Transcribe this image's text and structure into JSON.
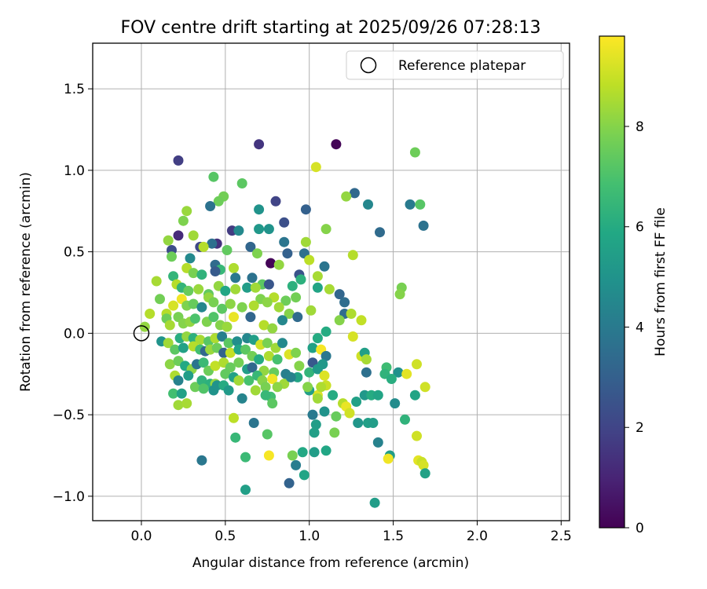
{
  "chart_data": {
    "type": "scatter",
    "title": "FOV centre drift starting at 2025/09/26 07:28:13",
    "xlabel": "Angular distance from reference (arcmin)",
    "ylabel": "Rotation from reference (arcmin)",
    "xlim": [
      -0.29,
      2.55
    ],
    "ylim": [
      -1.15,
      1.78
    ],
    "xticks": [
      0.0,
      0.5,
      1.0,
      1.5,
      2.0,
      2.5
    ],
    "xtick_labels": [
      "0.0",
      "0.5",
      "1.0",
      "1.5",
      "2.0",
      "2.5"
    ],
    "yticks": [
      -1.0,
      -0.5,
      0.0,
      0.5,
      1.0,
      1.5
    ],
    "ytick_labels": [
      "−1.0",
      "−0.5",
      "0.0",
      "0.5",
      "1.0",
      "1.5"
    ],
    "grid": true,
    "legend": {
      "position": "upper-right",
      "entries": [
        "Reference platepar"
      ]
    },
    "reference_point": {
      "x": 0.0,
      "y": 0.0,
      "label": "Reference platepar"
    },
    "colorbar": {
      "label": "Hours from first FF file",
      "colormap": "viridis",
      "range": [
        0,
        9.8
      ],
      "ticks": [
        0,
        2,
        4,
        6,
        8
      ],
      "tick_labels": [
        "0",
        "2",
        "4",
        "6",
        "8"
      ]
    },
    "points": [
      [
        1.16,
        1.16,
        0.1
      ],
      [
        0.7,
        1.16,
        1.5
      ],
      [
        0.22,
        1.06,
        1.8
      ],
      [
        1.63,
        1.11,
        7.6
      ],
      [
        1.04,
        1.02,
        9.2
      ],
      [
        0.43,
        0.96,
        7.2
      ],
      [
        0.6,
        0.92,
        7.3
      ],
      [
        1.27,
        0.86,
        3.3
      ],
      [
        1.22,
        0.84,
        8.2
      ],
      [
        0.49,
        0.84,
        7.7
      ],
      [
        0.46,
        0.81,
        7.6
      ],
      [
        0.8,
        0.81,
        2.0
      ],
      [
        0.41,
        0.78,
        3.7
      ],
      [
        0.98,
        0.76,
        3.0
      ],
      [
        0.7,
        0.76,
        5.0
      ],
      [
        1.35,
        0.79,
        4.5
      ],
      [
        1.6,
        0.79,
        4.0
      ],
      [
        1.66,
        0.79,
        7.2
      ],
      [
        0.27,
        0.75,
        8.3
      ],
      [
        0.25,
        0.69,
        7.9
      ],
      [
        0.85,
        0.68,
        2.4
      ],
      [
        0.7,
        0.64,
        5.2
      ],
      [
        0.76,
        0.64,
        5.0
      ],
      [
        1.1,
        0.64,
        8.0
      ],
      [
        1.68,
        0.66,
        3.7
      ],
      [
        1.42,
        0.62,
        3.4
      ],
      [
        0.22,
        0.6,
        1.2
      ],
      [
        0.31,
        0.6,
        8.4
      ],
      [
        0.54,
        0.63,
        1.7
      ],
      [
        0.58,
        0.63,
        4.6
      ],
      [
        0.45,
        0.55,
        1.4
      ],
      [
        0.42,
        0.55,
        3.6
      ],
      [
        0.16,
        0.57,
        8.2
      ],
      [
        0.85,
        0.56,
        3.8
      ],
      [
        0.98,
        0.56,
        8.4
      ],
      [
        0.18,
        0.51,
        2.3
      ],
      [
        0.35,
        0.53,
        2.1
      ],
      [
        0.37,
        0.53,
        8.7
      ],
      [
        0.51,
        0.51,
        7.4
      ],
      [
        0.65,
        0.53,
        3.2
      ],
      [
        0.69,
        0.49,
        7.9
      ],
      [
        0.87,
        0.49,
        3.0
      ],
      [
        0.97,
        0.49,
        3.6
      ],
      [
        1.26,
        0.48,
        8.7
      ],
      [
        0.18,
        0.47,
        7.6
      ],
      [
        0.29,
        0.46,
        4.6
      ],
      [
        0.44,
        0.42,
        3.4
      ],
      [
        0.47,
        0.39,
        6.5
      ],
      [
        0.55,
        0.4,
        8.6
      ],
      [
        0.27,
        0.4,
        8.7
      ],
      [
        0.77,
        0.43,
        0.1
      ],
      [
        0.82,
        0.42,
        8.2
      ],
      [
        1.0,
        0.45,
        8.8
      ],
      [
        1.09,
        0.41,
        3.8
      ],
      [
        0.19,
        0.35,
        6.4
      ],
      [
        0.31,
        0.37,
        7.8
      ],
      [
        0.36,
        0.36,
        6.3
      ],
      [
        0.44,
        0.38,
        2.8
      ],
      [
        0.56,
        0.34,
        3.9
      ],
      [
        0.66,
        0.34,
        3.7
      ],
      [
        0.72,
        0.3,
        7.3
      ],
      [
        0.76,
        0.3,
        2.6
      ],
      [
        0.9,
        0.29,
        6.2
      ],
      [
        0.94,
        0.36,
        2.5
      ],
      [
        0.95,
        0.33,
        6.2
      ],
      [
        1.05,
        0.35,
        8.5
      ],
      [
        1.05,
        0.28,
        5.7
      ],
      [
        1.12,
        0.27,
        8.5
      ],
      [
        1.55,
        0.28,
        7.8
      ],
      [
        1.54,
        0.24,
        8.0
      ],
      [
        0.09,
        0.32,
        8.5
      ],
      [
        0.21,
        0.3,
        8.7
      ],
      [
        0.24,
        0.28,
        6.4
      ],
      [
        0.28,
        0.26,
        7.5
      ],
      [
        0.34,
        0.27,
        8.3
      ],
      [
        0.4,
        0.24,
        7.4
      ],
      [
        0.46,
        0.29,
        8.2
      ],
      [
        0.5,
        0.26,
        5.8
      ],
      [
        0.56,
        0.27,
        8.4
      ],
      [
        0.63,
        0.28,
        5.4
      ],
      [
        0.68,
        0.28,
        8.4
      ],
      [
        0.71,
        0.21,
        7.9
      ],
      [
        0.79,
        0.22,
        8.7
      ],
      [
        0.86,
        0.2,
        7.6
      ],
      [
        0.92,
        0.22,
        7.7
      ],
      [
        1.18,
        0.24,
        3.2
      ],
      [
        1.21,
        0.19,
        3.5
      ],
      [
        0.11,
        0.21,
        7.7
      ],
      [
        0.15,
        0.12,
        8.7
      ],
      [
        0.19,
        0.17,
        9.2
      ],
      [
        0.24,
        0.21,
        9.6
      ],
      [
        0.27,
        0.17,
        7.9
      ],
      [
        0.31,
        0.18,
        7.5
      ],
      [
        0.36,
        0.16,
        4.5
      ],
      [
        0.4,
        0.22,
        8.2
      ],
      [
        0.43,
        0.19,
        7.8
      ],
      [
        0.48,
        0.15,
        7.3
      ],
      [
        0.53,
        0.18,
        8.1
      ],
      [
        0.6,
        0.16,
        7.9
      ],
      [
        0.67,
        0.17,
        8.6
      ],
      [
        0.75,
        0.19,
        8.1
      ],
      [
        0.82,
        0.16,
        8.4
      ],
      [
        0.88,
        0.12,
        8.0
      ],
      [
        0.93,
        0.1,
        3.4
      ],
      [
        1.01,
        0.14,
        8.4
      ],
      [
        1.21,
        0.12,
        3.5
      ],
      [
        1.25,
        0.12,
        8.6
      ],
      [
        0.05,
        0.12,
        8.7
      ],
      [
        0.02,
        0.04,
        8.2
      ],
      [
        0.15,
        0.09,
        7.6
      ],
      [
        0.17,
        0.05,
        8.5
      ],
      [
        0.22,
        0.1,
        7.8
      ],
      [
        0.25,
        0.06,
        8.0
      ],
      [
        0.29,
        0.07,
        8.2
      ],
      [
        0.32,
        0.09,
        7.0
      ],
      [
        0.39,
        0.07,
        7.9
      ],
      [
        0.43,
        0.1,
        7.1
      ],
      [
        0.47,
        0.05,
        8.0
      ],
      [
        0.51,
        0.04,
        8.3
      ],
      [
        0.55,
        0.1,
        9.5
      ],
      [
        0.65,
        0.1,
        3.2
      ],
      [
        0.73,
        0.05,
        8.7
      ],
      [
        0.78,
        0.03,
        8.2
      ],
      [
        0.84,
        0.08,
        4.5
      ],
      [
        1.18,
        0.08,
        8.0
      ],
      [
        1.31,
        0.08,
        8.9
      ],
      [
        1.1,
        0.01,
        6.0
      ],
      [
        0.12,
        -0.05,
        5.0
      ],
      [
        0.16,
        -0.06,
        8.4
      ],
      [
        0.23,
        -0.03,
        6.1
      ],
      [
        0.27,
        -0.02,
        8.2
      ],
      [
        0.31,
        -0.03,
        6.2
      ],
      [
        0.35,
        -0.04,
        8.5
      ],
      [
        0.4,
        -0.05,
        7.2
      ],
      [
        0.44,
        -0.03,
        8.6
      ],
      [
        0.48,
        -0.02,
        4.2
      ],
      [
        0.52,
        -0.06,
        7.3
      ],
      [
        0.57,
        -0.05,
        4.8
      ],
      [
        0.63,
        -0.03,
        4.5
      ],
      [
        0.67,
        -0.04,
        5.5
      ],
      [
        0.71,
        -0.07,
        9.1
      ],
      [
        0.75,
        -0.06,
        7.8
      ],
      [
        0.8,
        -0.09,
        8.4
      ],
      [
        0.84,
        -0.06,
        4.6
      ],
      [
        1.05,
        -0.03,
        6.0
      ],
      [
        1.26,
        -0.02,
        9.2
      ],
      [
        0.17,
        -0.19,
        8.1
      ],
      [
        0.2,
        -0.1,
        7.3
      ],
      [
        0.25,
        -0.09,
        5.6
      ],
      [
        0.31,
        -0.08,
        8.7
      ],
      [
        0.35,
        -0.1,
        6.8
      ],
      [
        0.38,
        -0.11,
        3.3
      ],
      [
        0.41,
        -0.1,
        8.3
      ],
      [
        0.45,
        -0.09,
        7.6
      ],
      [
        0.49,
        -0.12,
        3.1
      ],
      [
        0.53,
        -0.12,
        8.9
      ],
      [
        0.58,
        -0.1,
        5.8
      ],
      [
        0.62,
        -0.1,
        7.3
      ],
      [
        0.66,
        -0.14,
        7.7
      ],
      [
        0.7,
        -0.16,
        6.0
      ],
      [
        0.76,
        -0.14,
        8.6
      ],
      [
        0.81,
        -0.16,
        6.9
      ],
      [
        0.88,
        -0.13,
        9.3
      ],
      [
        0.92,
        -0.12,
        7.9
      ],
      [
        1.02,
        -0.09,
        5.6
      ],
      [
        1.07,
        -0.1,
        9.7
      ],
      [
        1.1,
        -0.14,
        3.9
      ],
      [
        1.31,
        -0.14,
        9.1
      ],
      [
        1.33,
        -0.12,
        5.5
      ],
      [
        1.34,
        -0.16,
        8.5
      ],
      [
        0.22,
        -0.17,
        7.6
      ],
      [
        0.26,
        -0.2,
        5.9
      ],
      [
        0.3,
        -0.22,
        8.1
      ],
      [
        0.33,
        -0.19,
        3.8
      ],
      [
        0.37,
        -0.18,
        6.6
      ],
      [
        0.4,
        -0.23,
        7.6
      ],
      [
        0.44,
        -0.2,
        8.9
      ],
      [
        0.49,
        -0.18,
        8.6
      ],
      [
        0.53,
        -0.21,
        7.5
      ],
      [
        0.58,
        -0.18,
        7.7
      ],
      [
        0.63,
        -0.22,
        5.4
      ],
      [
        0.66,
        -0.21,
        3.3
      ],
      [
        0.73,
        -0.23,
        8.2
      ],
      [
        0.79,
        -0.24,
        7.5
      ],
      [
        0.86,
        -0.25,
        4.2
      ],
      [
        0.94,
        -0.2,
        8.0
      ],
      [
        1.02,
        -0.18,
        2.7
      ],
      [
        1.08,
        -0.19,
        5.2
      ],
      [
        1.34,
        -0.24,
        3.6
      ],
      [
        1.46,
        -0.21,
        6.7
      ],
      [
        1.53,
        -0.24,
        4.9
      ],
      [
        1.58,
        -0.25,
        9.4
      ],
      [
        1.64,
        -0.19,
        9.1
      ],
      [
        0.2,
        -0.26,
        8.6
      ],
      [
        0.22,
        -0.29,
        4.3
      ],
      [
        0.28,
        -0.26,
        5.4
      ],
      [
        0.32,
        -0.33,
        7.6
      ],
      [
        0.36,
        -0.29,
        6.3
      ],
      [
        0.41,
        -0.31,
        6.2
      ],
      [
        0.44,
        -0.31,
        8.2
      ],
      [
        0.5,
        -0.25,
        7.4
      ],
      [
        0.55,
        -0.27,
        5.6
      ],
      [
        0.58,
        -0.29,
        8.4
      ],
      [
        0.64,
        -0.29,
        6.9
      ],
      [
        0.69,
        -0.26,
        6.5
      ],
      [
        0.72,
        -0.29,
        8.0
      ],
      [
        0.78,
        -0.28,
        9.6
      ],
      [
        0.85,
        -0.31,
        8.4
      ],
      [
        0.93,
        -0.27,
        5.7
      ],
      [
        1.0,
        -0.24,
        6.4
      ],
      [
        1.05,
        -0.22,
        5.3
      ],
      [
        1.09,
        -0.26,
        9.3
      ],
      [
        1.1,
        -0.32,
        9.0
      ],
      [
        1.05,
        -0.38,
        9.3
      ],
      [
        1.0,
        -0.35,
        5.5
      ],
      [
        1.45,
        -0.25,
        6.3
      ],
      [
        1.49,
        -0.28,
        6.1
      ],
      [
        1.63,
        -0.38,
        5.7
      ],
      [
        1.69,
        -0.33,
        9.1
      ],
      [
        0.19,
        -0.37,
        6.8
      ],
      [
        0.22,
        -0.44,
        8.4
      ],
      [
        0.24,
        -0.37,
        5.6
      ],
      [
        0.27,
        -0.43,
        8.5
      ],
      [
        0.37,
        -0.34,
        7.1
      ],
      [
        0.43,
        -0.35,
        5.0
      ],
      [
        0.45,
        -0.32,
        5.0
      ],
      [
        0.49,
        -0.32,
        6.0
      ],
      [
        0.52,
        -0.35,
        5.3
      ],
      [
        0.6,
        -0.4,
        4.4
      ],
      [
        0.68,
        -0.35,
        8.4
      ],
      [
        0.74,
        -0.33,
        7.8
      ],
      [
        0.77,
        -0.39,
        6.8
      ],
      [
        0.81,
        -0.33,
        8.1
      ],
      [
        0.89,
        -0.27,
        4.3
      ],
      [
        0.99,
        -0.33,
        8.0
      ],
      [
        1.05,
        -0.4,
        8.4
      ],
      [
        1.07,
        -0.33,
        8.6
      ],
      [
        1.14,
        -0.38,
        6.0
      ],
      [
        1.2,
        -0.43,
        8.7
      ],
      [
        1.22,
        -0.45,
        9.5
      ],
      [
        1.24,
        -0.49,
        9.1
      ],
      [
        1.28,
        -0.42,
        5.6
      ],
      [
        1.33,
        -0.38,
        5.2
      ],
      [
        1.37,
        -0.38,
        6.0
      ],
      [
        1.41,
        -0.38,
        5.7
      ],
      [
        1.51,
        -0.43,
        4.7
      ],
      [
        1.57,
        -0.53,
        6.3
      ],
      [
        0.78,
        -0.43,
        7.3
      ],
      [
        0.74,
        -0.38,
        6.5
      ],
      [
        0.55,
        -0.52,
        8.8
      ],
      [
        0.67,
        -0.55,
        3.8
      ],
      [
        1.02,
        -0.5,
        4.0
      ],
      [
        1.04,
        -0.56,
        5.4
      ],
      [
        1.09,
        -0.48,
        5.0
      ],
      [
        1.16,
        -0.51,
        7.5
      ],
      [
        1.29,
        -0.55,
        5.1
      ],
      [
        1.35,
        -0.55,
        5.5
      ],
      [
        1.38,
        -0.55,
        5.4
      ],
      [
        1.41,
        -0.67,
        4.3
      ],
      [
        1.48,
        -0.75,
        5.4
      ],
      [
        1.47,
        -0.77,
        9.6
      ],
      [
        1.64,
        -0.63,
        9.1
      ],
      [
        1.65,
        -0.78,
        9.4
      ],
      [
        1.67,
        -0.79,
        9.0
      ],
      [
        1.68,
        -0.81,
        9.2
      ],
      [
        1.69,
        -0.86,
        5.6
      ],
      [
        0.56,
        -0.64,
        6.5
      ],
      [
        0.62,
        -0.76,
        6.6
      ],
      [
        0.75,
        -0.62,
        7.2
      ],
      [
        0.76,
        -0.75,
        9.7
      ],
      [
        0.9,
        -0.75,
        7.8
      ],
      [
        0.96,
        -0.73,
        5.9
      ],
      [
        1.03,
        -0.73,
        5.4
      ],
      [
        1.1,
        -0.72,
        5.8
      ],
      [
        1.03,
        -0.61,
        5.5
      ],
      [
        1.15,
        -0.61,
        7.8
      ],
      [
        0.92,
        -0.81,
        4.1
      ],
      [
        0.97,
        -0.87,
        5.7
      ],
      [
        0.88,
        -0.92,
        3.1
      ],
      [
        0.62,
        -0.96,
        5.5
      ],
      [
        0.36,
        -0.78,
        3.9
      ],
      [
        1.39,
        -1.04,
        5.4
      ]
    ]
  }
}
